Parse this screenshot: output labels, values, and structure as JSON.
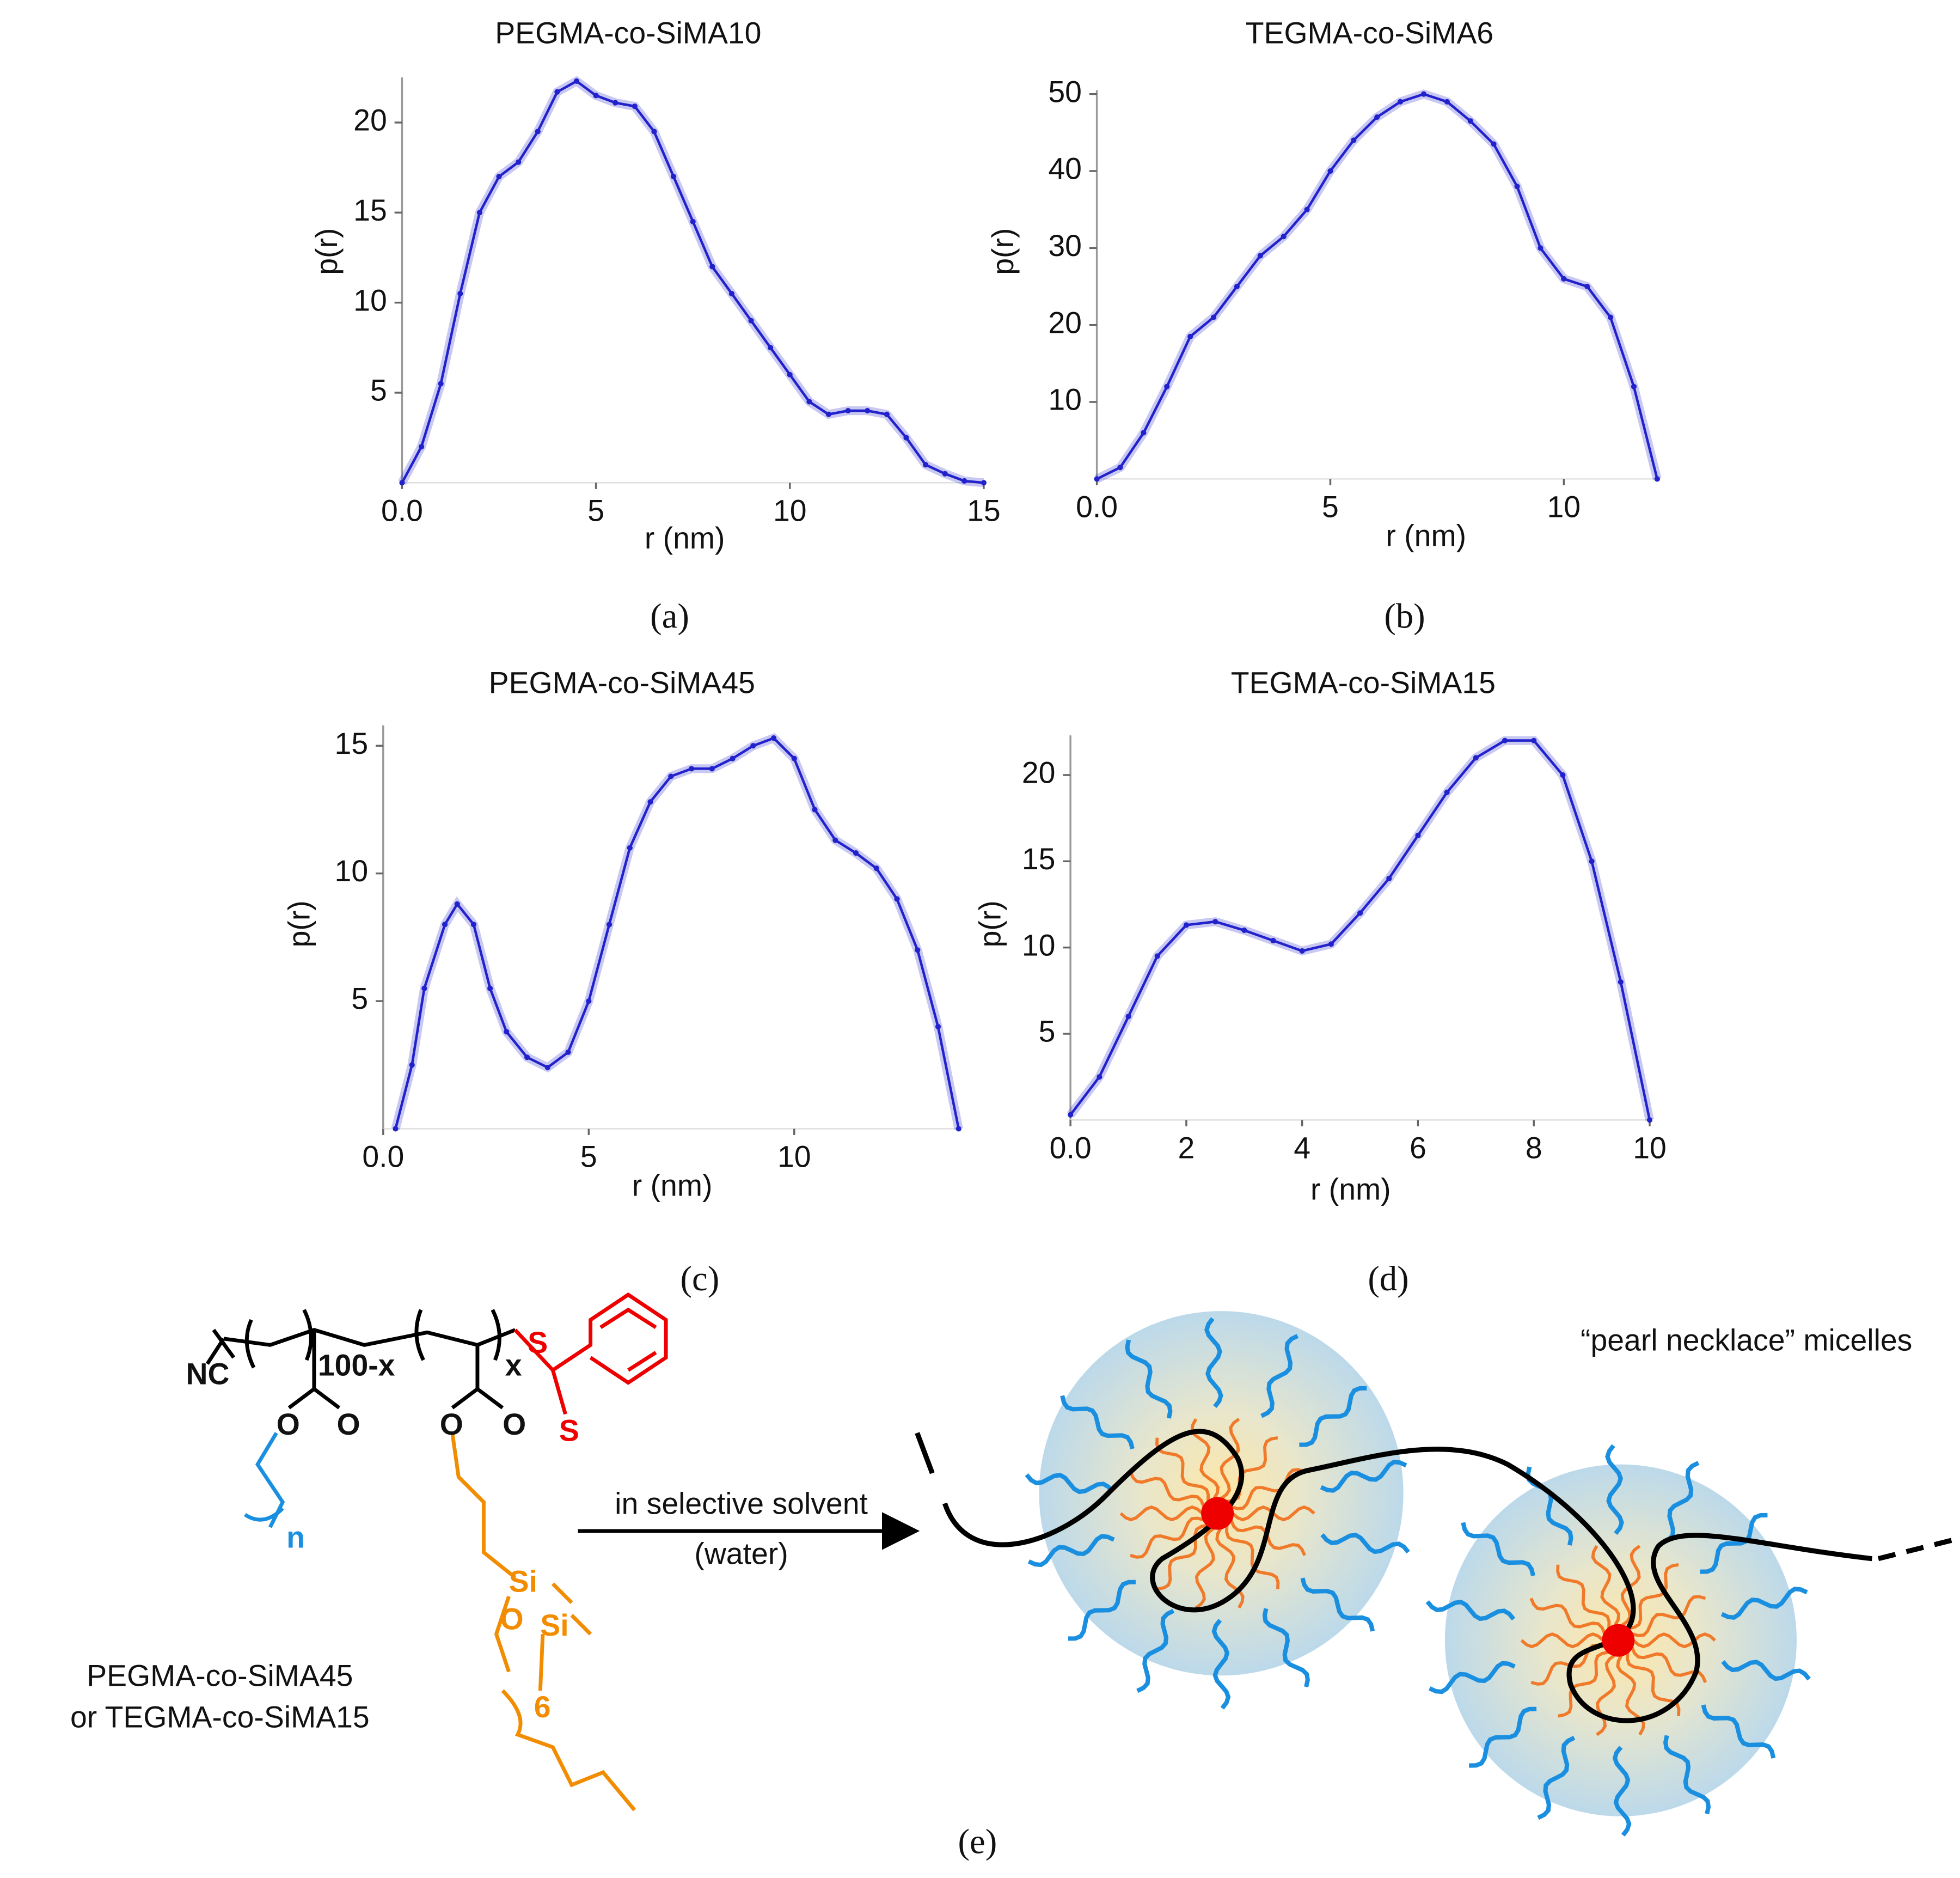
{
  "chart_data": [
    {
      "type": "line",
      "title": "PEGMA-co-SiMA10",
      "xlabel": "r (nm)",
      "ylabel": "p(r)",
      "panel": "(a)",
      "color": "#2222cc",
      "x": [
        0,
        0.5,
        1,
        1.5,
        2,
        2.5,
        3,
        3.5,
        4,
        4.5,
        5,
        5.5,
        6,
        6.5,
        7,
        7.5,
        8,
        8.5,
        9,
        9.5,
        10,
        10.5,
        11,
        11.5,
        12,
        12.5,
        13,
        13.5,
        14,
        14.5,
        15
      ],
      "values": [
        0,
        2,
        5.5,
        10.5,
        15,
        17,
        17.8,
        19.5,
        21.7,
        22.3,
        21.5,
        21.1,
        20.9,
        19.5,
        17,
        14.5,
        12,
        10.5,
        9,
        7.5,
        6,
        4.5,
        3.8,
        4,
        4,
        3.8,
        2.5,
        1,
        0.5,
        0.1,
        0
      ],
      "xlim": [
        0,
        15
      ],
      "ylim": [
        0,
        22.5
      ],
      "xticks": [
        {
          "value": 0,
          "label": "0.0"
        },
        5,
        10,
        15
      ],
      "yticks": [
        5,
        10,
        15,
        20
      ]
    },
    {
      "type": "line",
      "title": "TEGMA-co-SiMA6",
      "xlabel": "r (nm)",
      "ylabel": "p(r)",
      "panel": "(b)",
      "color": "#2222cc",
      "x": [
        0,
        0.5,
        1,
        1.5,
        2,
        2.5,
        3,
        3.5,
        4,
        4.5,
        5,
        5.5,
        6,
        6.5,
        7,
        7.5,
        8,
        8.5,
        9,
        9.5,
        10,
        10.5,
        11,
        11.5,
        12
      ],
      "values": [
        0,
        1.5,
        6,
        12,
        18.5,
        21,
        25,
        29,
        31.5,
        35,
        40,
        44,
        47,
        49,
        50,
        49,
        46.5,
        43.5,
        38,
        30,
        26,
        25,
        21,
        12,
        0
      ],
      "xlim": [
        0,
        12
      ],
      "ylim": [
        0,
        50.5
      ],
      "xticks": [
        {
          "value": 0,
          "label": "0.0"
        },
        5,
        10
      ],
      "yticks": [
        10,
        20,
        30,
        40,
        50
      ]
    },
    {
      "type": "line",
      "title": "PEGMA-co-SiMA45",
      "xlabel": "r (nm)",
      "ylabel": "p(r)",
      "panel": "(c)",
      "color": "#2222cc",
      "x": [
        0.3,
        0.7,
        1,
        1.5,
        1.8,
        2.2,
        2.6,
        3,
        3.5,
        4,
        4.5,
        5,
        5.5,
        6,
        6.5,
        7,
        7.5,
        8,
        8.5,
        9,
        9.5,
        10,
        10.5,
        11,
        11.5,
        12,
        12.5,
        13,
        13.5,
        14
      ],
      "values": [
        0,
        2.5,
        5.5,
        8,
        8.8,
        8,
        5.5,
        3.8,
        2.8,
        2.4,
        3,
        5,
        8,
        11,
        12.8,
        13.8,
        14.1,
        14.1,
        14.5,
        15,
        15.3,
        14.5,
        12.5,
        11.3,
        10.8,
        10.2,
        9,
        7,
        4,
        0
      ],
      "xlim": [
        0,
        14
      ],
      "ylim": [
        0,
        15.8
      ],
      "xticks": [
        {
          "value": 0,
          "label": "0.0"
        },
        5,
        10
      ],
      "yticks": [
        5,
        10,
        15
      ]
    },
    {
      "type": "line",
      "title": "TEGMA-co-SiMA15",
      "xlabel": "r (nm)",
      "ylabel": "p(r)",
      "panel": "(d)",
      "color": "#2222cc",
      "x": [
        0,
        0.5,
        1,
        1.5,
        2,
        2.5,
        3,
        3.5,
        4,
        4.5,
        5,
        5.5,
        6,
        6.5,
        7,
        7.5,
        8,
        8.5,
        9,
        9.5,
        10
      ],
      "values": [
        0.3,
        2.5,
        6,
        9.5,
        11.3,
        11.5,
        11,
        10.4,
        9.8,
        10.2,
        12,
        14,
        16.5,
        19,
        21,
        22,
        22,
        20,
        15,
        8,
        0
      ],
      "xlim": [
        0,
        10
      ],
      "ylim": [
        0,
        22.3
      ],
      "xticks": [
        {
          "value": 0,
          "label": "0.0"
        },
        2,
        4,
        6,
        8,
        10
      ],
      "yticks": [
        5,
        10,
        15,
        20
      ]
    }
  ],
  "diagram": {
    "panel": "(e)",
    "arrow_top": "in selective solvent",
    "arrow_bottom": "(water)",
    "micelles": "“pearl necklace” micelles",
    "name_line1": "PEGMA-co-SiMA45",
    "name_line2": "or TEGMA-co-SiMA15",
    "atoms": {
      "nc": "NC",
      "sub1": "100-x",
      "sub2": "x",
      "o1": "O",
      "o2": "O",
      "o3": "O",
      "o4": "O",
      "s1": "S",
      "s2": "S",
      "n": "n",
      "si1": "Si",
      "si2": "Si",
      "o5": "O",
      "six": "6"
    }
  }
}
